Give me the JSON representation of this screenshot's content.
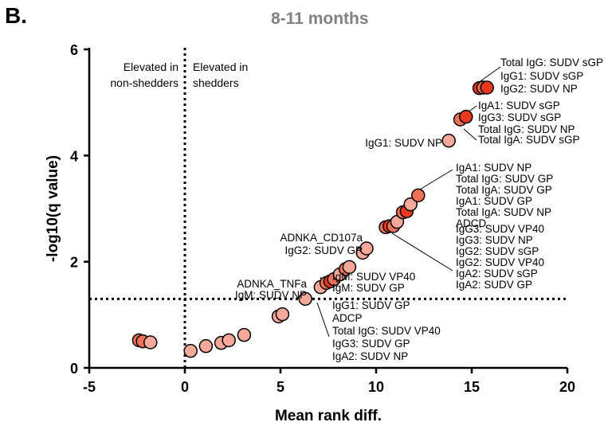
{
  "panel_letter": "B.",
  "chart_data": {
    "type": "scatter",
    "title": "8-11 months",
    "xlabel": "Mean rank diff.",
    "ylabel": "-log10(q value)",
    "xlim": [
      -5,
      20
    ],
    "ylim": [
      0,
      6
    ],
    "xticks": [
      "-5",
      "0",
      "5",
      "10",
      "15",
      "20"
    ],
    "yticks": [
      "0",
      "2",
      "4",
      "6"
    ],
    "threshold_y": 1.3,
    "threshold_x": 0,
    "region_labels": {
      "left": [
        "Elevated in",
        "non-shedders"
      ],
      "right": [
        "Elevated in",
        "shedders"
      ]
    },
    "colors": {
      "low": "#f6a99a",
      "mid": "#ef7257",
      "high": "#e8391f",
      "edge": "#000000"
    },
    "points": [
      {
        "x": -2.4,
        "y": 0.52,
        "c": "mid"
      },
      {
        "x": -2.2,
        "y": 0.5,
        "c": "mid"
      },
      {
        "x": -1.8,
        "y": 0.48,
        "c": "low"
      },
      {
        "x": 0.3,
        "y": 0.32,
        "c": "low"
      },
      {
        "x": 1.1,
        "y": 0.41,
        "c": "low"
      },
      {
        "x": 1.9,
        "y": 0.47,
        "c": "low"
      },
      {
        "x": 2.3,
        "y": 0.52,
        "c": "low"
      },
      {
        "x": 3.1,
        "y": 0.62,
        "c": "low"
      },
      {
        "x": 4.9,
        "y": 0.97,
        "c": "low"
      },
      {
        "x": 5.1,
        "y": 1.01,
        "c": "low"
      },
      {
        "x": 6.3,
        "y": 1.3,
        "c": "low"
      },
      {
        "x": 7.1,
        "y": 1.52,
        "c": "low"
      },
      {
        "x": 7.4,
        "y": 1.6,
        "c": "mid"
      },
      {
        "x": 7.6,
        "y": 1.63,
        "c": "high"
      },
      {
        "x": 7.8,
        "y": 1.67,
        "c": "mid"
      },
      {
        "x": 8.1,
        "y": 1.76,
        "c": "low"
      },
      {
        "x": 8.4,
        "y": 1.86,
        "c": "mid"
      },
      {
        "x": 8.6,
        "y": 1.9,
        "c": "low"
      },
      {
        "x": 9.3,
        "y": 2.17,
        "c": "low"
      },
      {
        "x": 9.5,
        "y": 2.25,
        "c": "low"
      },
      {
        "x": 10.5,
        "y": 2.65,
        "c": "mid"
      },
      {
        "x": 10.7,
        "y": 2.67,
        "c": "high"
      },
      {
        "x": 10.9,
        "y": 2.67,
        "c": "mid"
      },
      {
        "x": 11.1,
        "y": 2.75,
        "c": "low"
      },
      {
        "x": 11.4,
        "y": 2.93,
        "c": "mid"
      },
      {
        "x": 11.6,
        "y": 2.95,
        "c": "high"
      },
      {
        "x": 11.8,
        "y": 3.08,
        "c": "low"
      },
      {
        "x": 12.2,
        "y": 3.25,
        "c": "mid"
      },
      {
        "x": 13.8,
        "y": 4.28,
        "c": "low"
      },
      {
        "x": 14.4,
        "y": 4.68,
        "c": "mid"
      },
      {
        "x": 14.7,
        "y": 4.73,
        "c": "high"
      },
      {
        "x": 15.4,
        "y": 5.27,
        "c": "high"
      },
      {
        "x": 15.6,
        "y": 5.28,
        "c": "mid"
      },
      {
        "x": 15.8,
        "y": 5.28,
        "c": "high"
      }
    ],
    "annotations": [
      {
        "anchor": "top-right",
        "lines": [
          "Total IgG: SUDV sGP"
        ]
      },
      {
        "anchor": "top-right-2",
        "lines": [
          "IgG1: SUDV sGP",
          "IgG2: SUDV NP"
        ]
      },
      {
        "anchor": "upper-right",
        "lines": [
          "IgA1: SUDV sGP",
          "IgG3: SUDV sGP",
          "Total IgG: SUDV NP"
        ]
      },
      {
        "anchor": "upper-right-2",
        "lines": [
          "Total IgA: SUDV sGP"
        ]
      },
      {
        "anchor": "upper-left",
        "lines": [
          "IgG1: SUDV NP"
        ]
      },
      {
        "anchor": "mid-right-upper",
        "lines": [
          "IgA1: SUDV NP",
          "Total IgG: SUDV GP",
          "Total IgA: SUDV GP",
          "IgA1: SUDV GP",
          "Total IgA: SUDV NP",
          "ADCD"
        ]
      },
      {
        "anchor": "mid-right-lower",
        "lines": [
          "IgG3: SUDV VP40",
          "IgG3: SUDV NP",
          "IgG2: SUDV sGP",
          "IgG2: SUDV VP40",
          "IgA2: SUDV sGP",
          "IgA2: SUDV GP"
        ]
      },
      {
        "anchor": "mid-left",
        "lines": [
          "ADNKA_CD107a",
          "IgG2: SUDV GP"
        ]
      },
      {
        "anchor": "low-right",
        "lines": [
          "IgM: SUDV VP40",
          "IgM: SUDV GP"
        ]
      },
      {
        "anchor": "low-left",
        "lines": [
          "ADNKA_TNFa",
          "IgM: SUDV NP"
        ]
      },
      {
        "anchor": "bottom-right",
        "lines": [
          "IgG1: SUDV GP",
          "ADCP",
          "Total IgG: SUDV VP40",
          "IgG3: SUDV GP",
          "IgA2: SUDV NP"
        ]
      }
    ]
  }
}
